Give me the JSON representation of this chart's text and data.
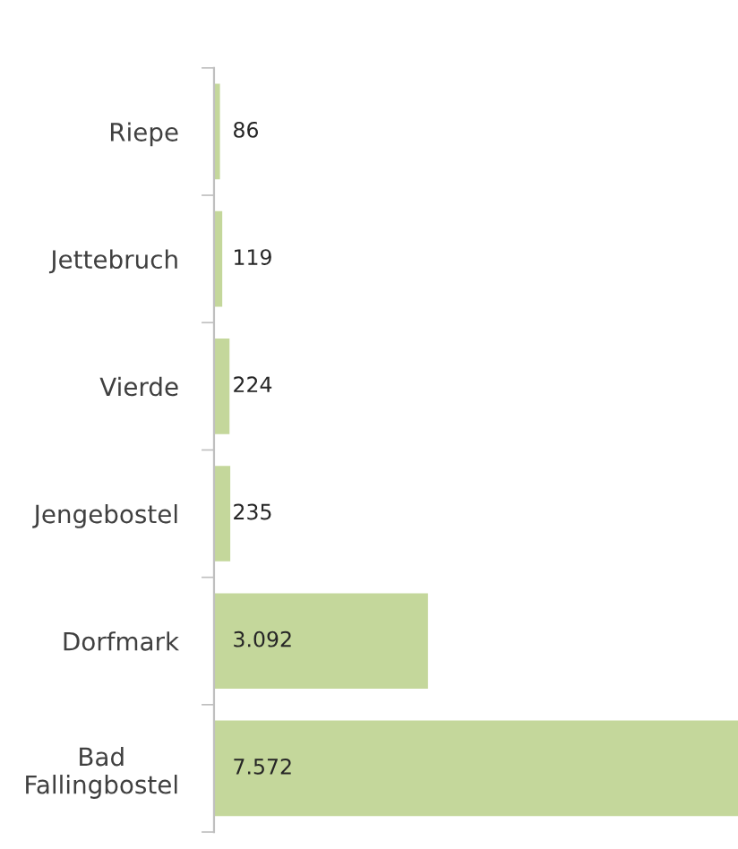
{
  "chart_data": {
    "type": "bar",
    "orientation": "horizontal",
    "categories": [
      "Riepe",
      "Jettebruch",
      "Vierde",
      "Jengebostel",
      "Dorfmark",
      "Bad\nFallingbostel"
    ],
    "values": [
      86,
      119,
      224,
      235,
      3092,
      7572
    ],
    "value_labels": [
      "86",
      "119",
      "224",
      "235",
      "3.092",
      "7.572"
    ],
    "color": "#c4d79b",
    "grid": false,
    "legend": false
  }
}
